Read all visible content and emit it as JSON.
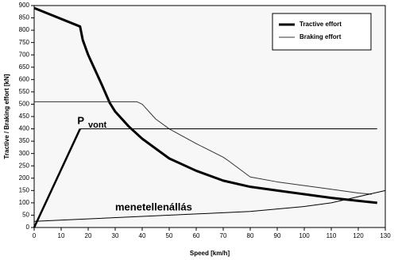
{
  "chart_data": {
    "type": "line",
    "x_label": "Speed [km/h]",
    "y_label": "Tractive / Braking effort [kN]",
    "xlim": [
      0,
      130
    ],
    "xticks": [
      0,
      10,
      20,
      30,
      40,
      50,
      60,
      70,
      80,
      90,
      100,
      110,
      120,
      130
    ],
    "ylim": [
      0,
      900
    ],
    "yticks": [
      0,
      50,
      100,
      150,
      200,
      250,
      300,
      350,
      400,
      450,
      500,
      550,
      600,
      650,
      700,
      750,
      800,
      850,
      900
    ],
    "legend": "upper right",
    "series": [
      {
        "name": "Tractive effort",
        "color": "#000000",
        "width": 3,
        "x": [
          0,
          17,
          18,
          20,
          25,
          28,
          30,
          35,
          40,
          50,
          60,
          70,
          80,
          90,
          100,
          110,
          120,
          127
        ],
        "values": [
          890,
          815,
          760,
          700,
          580,
          505,
          470,
          410,
          360,
          280,
          230,
          190,
          165,
          150,
          135,
          120,
          108,
          100
        ]
      },
      {
        "name": "Braking effort",
        "color": "#333333",
        "width": 1,
        "x": [
          0,
          38,
          40,
          45,
          50,
          60,
          70,
          72,
          80,
          90,
          100,
          110,
          120,
          125
        ],
        "values": [
          510,
          510,
          500,
          440,
          400,
          340,
          285,
          270,
          205,
          185,
          170,
          155,
          140,
          135
        ]
      },
      {
        "color": "#000000",
        "width": 2.5,
        "x": [
          0,
          17
        ],
        "values": [
          0,
          400
        ]
      },
      {
        "color": "#000000",
        "width": 1,
        "x": [
          17,
          127
        ],
        "values": [
          400,
          400
        ]
      },
      {
        "color": "#000000",
        "width": 1,
        "x": [
          0,
          20,
          40,
          60,
          80,
          100,
          110,
          120,
          130
        ],
        "values": [
          25,
          35,
          45,
          55,
          65,
          85,
          100,
          125,
          150
        ]
      }
    ],
    "annotations": [
      {
        "text": "P",
        "x": 16,
        "y": 430
      },
      {
        "text": "vont",
        "x": 20,
        "y": 415
      },
      {
        "text": "menetellenállás",
        "x": 30,
        "y": 80
      }
    ]
  }
}
